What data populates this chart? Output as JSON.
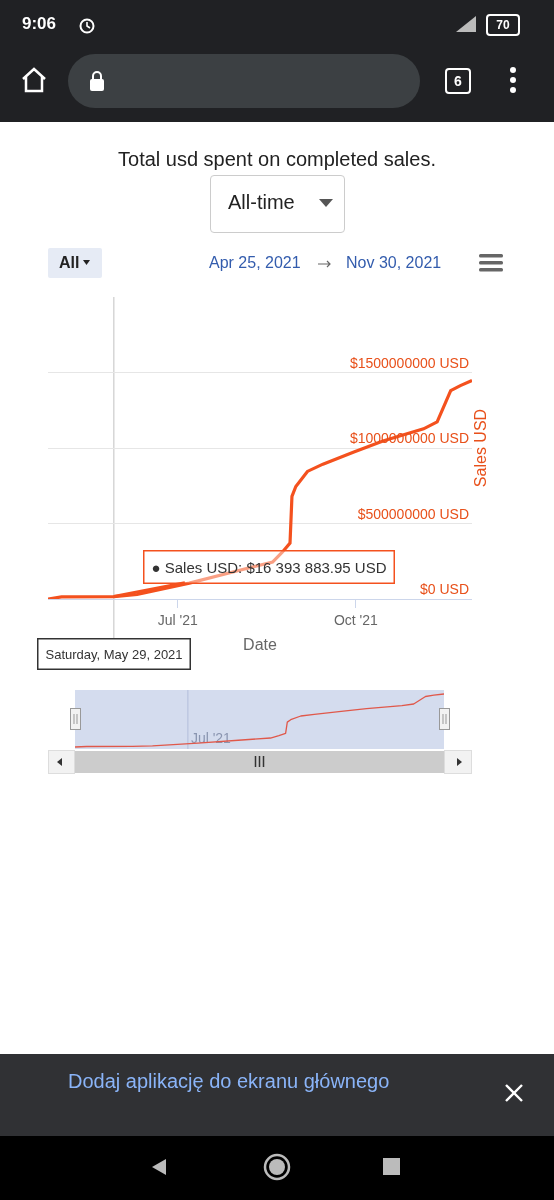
{
  "chart_data": [
    {
      "type": "line",
      "title": "Total usd spent on completed sales.",
      "xlabel": "Date",
      "ylabel": "Sales USD",
      "x": [
        "2021-04-25",
        "2021-05-02",
        "2021-05-29",
        "2021-06-10",
        "2021-07-07",
        "2021-08-02",
        "2021-08-19",
        "2021-08-24",
        "2021-08-28",
        "2021-08-29",
        "2021-08-31",
        "2021-09-06",
        "2021-09-14",
        "2021-09-30",
        "2021-10-15",
        "2021-11-05",
        "2021-11-12",
        "2021-11-19",
        "2021-11-24",
        "2021-11-30"
      ],
      "series": [
        {
          "color": "#f4511e",
          "values": [
            0,
            14000000,
            16000000,
            30000000,
            105000000,
            190000000,
            245000000,
            310000000,
            370000000,
            680000000,
            745000000,
            845000000,
            893000000,
            973000000,
            1047000000,
            1127000000,
            1173000000,
            1380000000,
            1413000000,
            1447000000
          ]
        }
      ],
      "xlim": [
        "2021-04-25",
        "2021-11-30"
      ],
      "xticks": [
        {
          "value": "2021-07-01",
          "label": "Jul '21"
        },
        {
          "value": "2021-10-01",
          "label": "Oct '21"
        }
      ],
      "ylim": [
        0,
        2000000000
      ],
      "yticks": [
        {
          "value": 0,
          "label": "$0 USD"
        },
        {
          "value": 500000000,
          "label": "$500000000 USD"
        },
        {
          "value": 1000000000,
          "label": "$1000000000 USD"
        },
        {
          "value": 1500000000,
          "label": "$1500000000 USD"
        }
      ],
      "grid": "y",
      "marker": "none",
      "line_style": "solid",
      "ref_lines": [
        {
          "axis": "x",
          "value": "2021-05-29",
          "color": "#cccccc",
          "label": "Saturday, May 29, 2021"
        }
      ],
      "annotations": [
        {
          "text": "● Sales USD: $16 393 883.95 USD",
          "x": "2021-05-29",
          "y": 16393883.95
        },
        "All-time",
        "All",
        "Apr 25, 2021",
        "Nov 30, 2021",
        "9:06",
        "70",
        "6",
        "Dodaj aplikację do ekranu głównego",
        "Jul '21"
      ]
    }
  ]
}
